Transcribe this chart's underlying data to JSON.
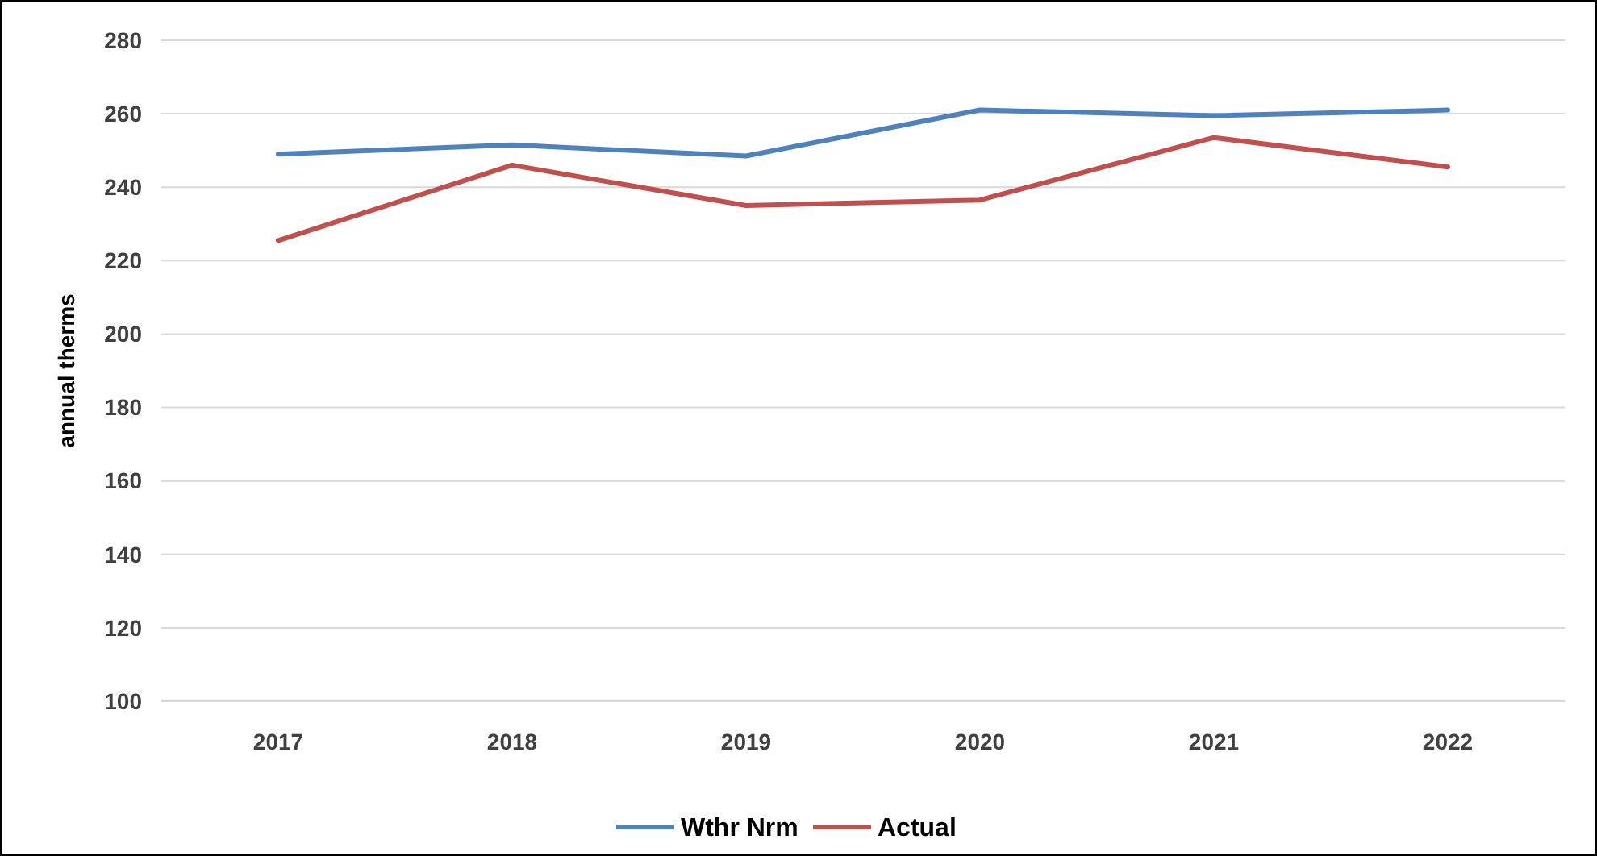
{
  "chart_data": {
    "type": "line",
    "ylabel": "annual therms",
    "categories": [
      "2017",
      "2018",
      "2019",
      "2020",
      "2021",
      "2022"
    ],
    "series": [
      {
        "name": "Wthr Nrm",
        "color": "#4f81bd",
        "values": [
          249,
          251.5,
          248.5,
          261,
          259.5,
          261
        ]
      },
      {
        "name": "Actual",
        "color": "#c0504d",
        "values": [
          225.5,
          246,
          235,
          236.5,
          253.5,
          245.5
        ]
      }
    ],
    "ylim": [
      100,
      280
    ],
    "yticks": [
      100,
      120,
      140,
      160,
      180,
      200,
      220,
      240,
      260,
      280
    ],
    "grid": "y",
    "legend": "bottom",
    "marker": "none",
    "line_style": "solid"
  }
}
